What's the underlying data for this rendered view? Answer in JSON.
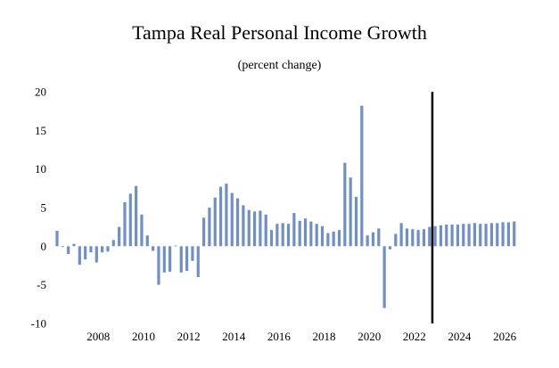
{
  "chart_data": {
    "type": "bar",
    "title": "Tampa Real Personal Income Growth",
    "subtitle": "(percent change)",
    "xlabel": "",
    "ylabel": "",
    "ylim": [
      -10,
      20
    ],
    "yticks": [
      20,
      15,
      10,
      5,
      0,
      -5,
      -10
    ],
    "xticks": [
      "2008",
      "2010",
      "2012",
      "2014",
      "2016",
      "2018",
      "2020",
      "2022",
      "2024",
      "2026"
    ],
    "start_year": 2007,
    "start_quarter": 1,
    "bar_color": "#6f8fc8",
    "marker_line": {
      "label": "forecast divider",
      "after_index": 66,
      "color": "#000000"
    },
    "values": [
      2.0,
      -0.1,
      -1.0,
      0.3,
      -2.4,
      -1.7,
      -0.8,
      -2.1,
      -0.8,
      -0.7,
      0.8,
      2.5,
      5.7,
      6.8,
      7.8,
      4.1,
      1.4,
      -0.6,
      -5.0,
      -3.4,
      -3.3,
      0.1,
      -3.4,
      -3.2,
      -1.9,
      -4.0,
      3.7,
      5.0,
      6.3,
      7.7,
      8.1,
      6.9,
      6.2,
      5.3,
      4.7,
      4.5,
      4.6,
      4.1,
      2.1,
      2.9,
      3.0,
      2.9,
      4.3,
      3.3,
      3.6,
      3.2,
      2.9,
      2.6,
      1.7,
      1.9,
      2.1,
      10.8,
      8.9,
      6.4,
      18.2,
      1.4,
      1.8,
      2.3,
      -8.0,
      -0.4,
      1.6,
      3.0,
      2.3,
      2.2,
      2.1,
      2.2,
      2.5,
      2.6,
      2.7,
      2.8,
      2.8,
      2.8,
      2.9,
      2.9,
      3.0,
      2.9,
      2.9,
      3.0,
      3.0,
      3.1,
      3.1,
      3.2
    ]
  }
}
